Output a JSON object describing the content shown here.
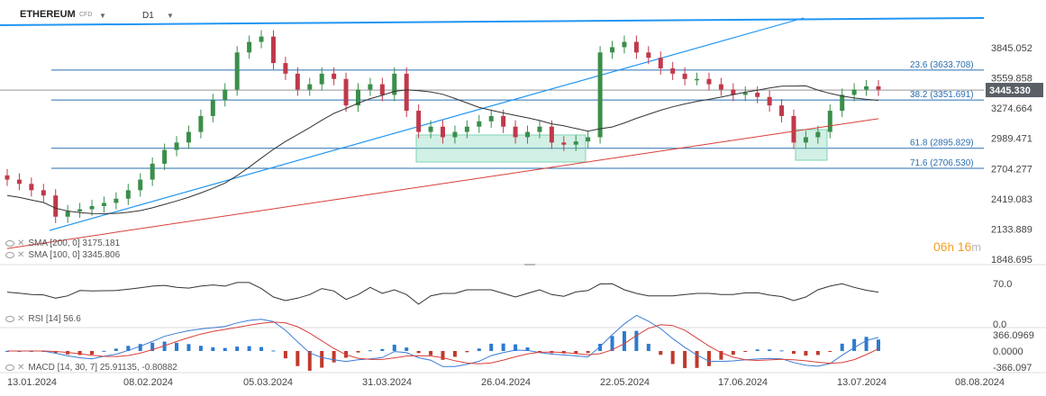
{
  "header": {
    "symbol": "ETHEREUM",
    "symbol_type": "CFD",
    "timeframe": "D1"
  },
  "price_labels": [
    "3845.052",
    "3559.858",
    "3274.664",
    "2989.471",
    "2704.277",
    "2419.083",
    "2133.889",
    "1848.695"
  ],
  "current_price": "3445.330",
  "fib_levels": [
    {
      "label": "23.6 (3633.708)",
      "value": 3633.708
    },
    {
      "label": "38.2 (3351.691)",
      "value": 3351.691
    },
    {
      "label": "61.8 (2895.829)",
      "value": 2895.829
    },
    {
      "label": "71.6 (2706.530)",
      "value": 2706.53
    }
  ],
  "indicators": {
    "sma200": "SMA [200, 0] 3175.181",
    "sma100": "SMA [100, 0] 3345.806",
    "rsi": "RSI [14] 56.6",
    "macd": "MACD [14, 30, 7] 25.91135, -0.80882"
  },
  "rsi_labels": [
    "70.0",
    "0.0"
  ],
  "macd_labels": [
    "366.0969",
    "0.0000",
    "-366.097"
  ],
  "dates": [
    "13.01.2024",
    "08.02.2024",
    "05.03.2024",
    "31.03.2024",
    "26.04.2024",
    "22.05.2024",
    "17.06.2024",
    "13.07.2024",
    "08.08.2024"
  ],
  "timer": {
    "hours": "06",
    "h": "h",
    "minutes": "16",
    "m": "m"
  },
  "colors": {
    "up": "#3a8f4a",
    "down": "#c0394b",
    "sma200": "#d9403a",
    "sma100": "#333333",
    "trendline": "#2196f3",
    "fib": "#2a6fb0",
    "box": "#7fd3b5",
    "rsi": "#333333",
    "macd_line": "#3a7bd5",
    "signal_line": "#d9403a"
  },
  "chart_data": {
    "type": "candlestick",
    "title": "ETHEREUM CFD D1",
    "x_range": [
      "13.01.2024",
      "08.08.2024"
    ],
    "y_range": [
      1848.695,
      4000
    ],
    "close_approx": [
      2600,
      2560,
      2500,
      2450,
      2250,
      2300,
      2320,
      2350,
      2380,
      2420,
      2500,
      2600,
      2750,
      2880,
      2950,
      3050,
      3200,
      3350,
      3450,
      3800,
      3900,
      3950,
      3700,
      3600,
      3450,
      3500,
      3600,
      3550,
      3300,
      3450,
      3500,
      3400,
      3600,
      3250,
      3050,
      3100,
      3000,
      3050,
      3100,
      3150,
      3200,
      3100,
      3000,
      3050,
      3100,
      2950,
      2930,
      2960,
      3000,
      3800,
      3850,
      3900,
      3800,
      3750,
      3650,
      3600,
      3550,
      3550,
      3500,
      3450,
      3400,
      3420,
      3380,
      3300,
      3200,
      2950,
      3000,
      3050,
      3250,
      3400,
      3450,
      3480,
      3450
    ],
    "sma100_last": 3345.806,
    "sma200_last": 3175.181,
    "rsi_last": 56.6,
    "macd_last": [
      25.91135,
      -0.80882
    ]
  }
}
